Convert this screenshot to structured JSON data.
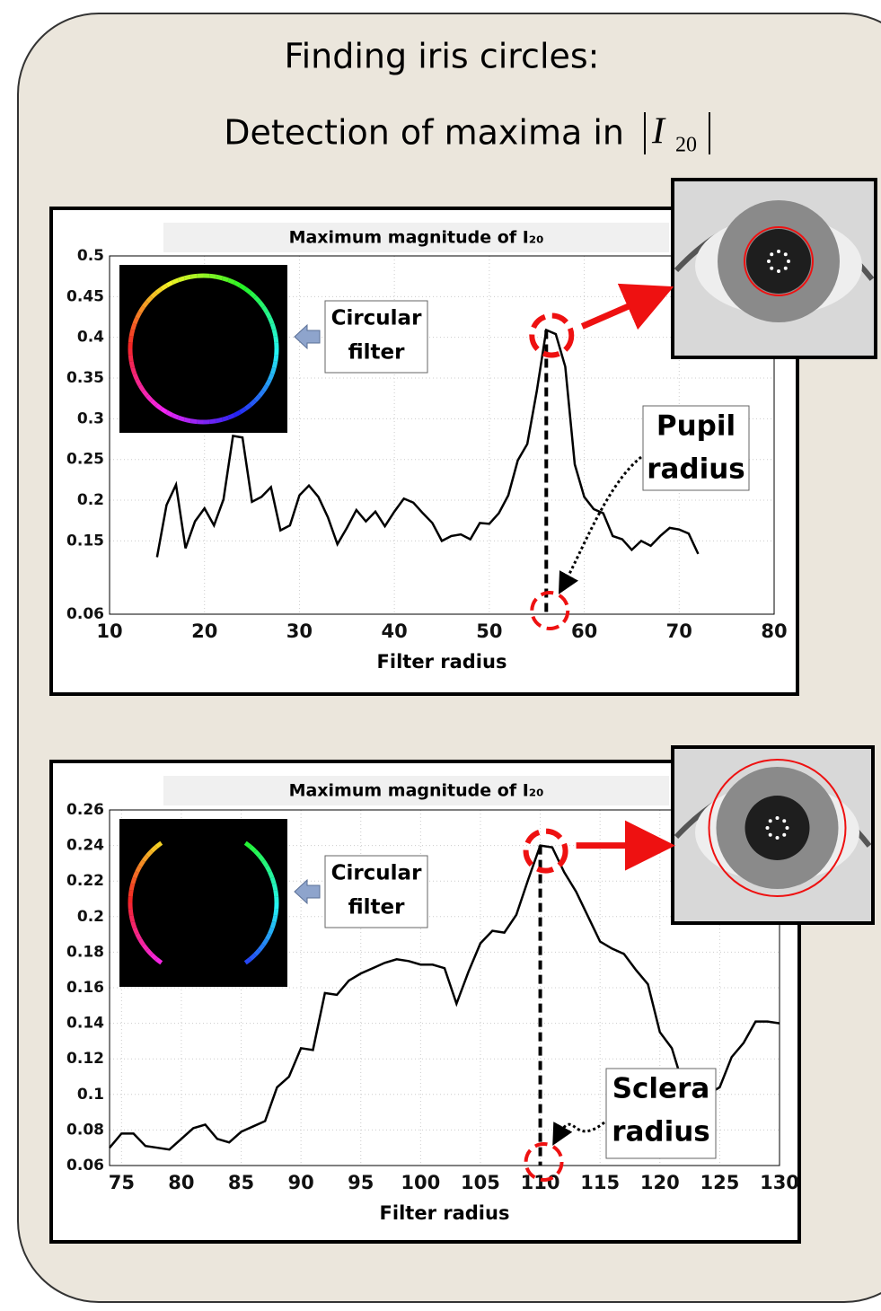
{
  "title": "Finding iris circles:",
  "subtitle": "Detection of maxima in",
  "formula": {
    "symbol": "I",
    "subscript": "20"
  },
  "chart_data": [
    {
      "type": "line",
      "title": "Maximum magnitude of I₂₀",
      "x_label": "Filter radius",
      "color": "#000000",
      "grid": true,
      "x": [
        15,
        16,
        17,
        18,
        19,
        20,
        21,
        22,
        23,
        24,
        25,
        26,
        27,
        28,
        29,
        30,
        31,
        32,
        33,
        34,
        35,
        36,
        37,
        38,
        39,
        40,
        41,
        42,
        43,
        44,
        45,
        46,
        47,
        48,
        49,
        50,
        51,
        52,
        53,
        54,
        55,
        56,
        57,
        58,
        59,
        60,
        61,
        62,
        63,
        64,
        65,
        66,
        67,
        68,
        69,
        70,
        71,
        72
      ],
      "values": [
        0.13,
        0.194,
        0.219,
        0.141,
        0.174,
        0.19,
        0.169,
        0.201,
        0.279,
        0.277,
        0.198,
        0.204,
        0.216,
        0.163,
        0.169,
        0.206,
        0.218,
        0.204,
        0.179,
        0.146,
        0.166,
        0.188,
        0.174,
        0.186,
        0.168,
        0.186,
        0.202,
        0.197,
        0.184,
        0.172,
        0.15,
        0.156,
        0.158,
        0.152,
        0.172,
        0.171,
        0.184,
        0.206,
        0.249,
        0.269,
        0.334,
        0.409,
        0.404,
        0.364,
        0.244,
        0.204,
        0.189,
        0.184,
        0.156,
        0.152,
        0.139,
        0.15,
        0.144,
        0.156,
        0.166,
        0.164,
        0.159,
        0.134
      ],
      "xlim": [
        10,
        80
      ],
      "xticks": [
        10,
        20,
        30,
        40,
        50,
        60,
        70,
        80
      ],
      "ylim": [
        0.06,
        0.5
      ],
      "yticks": [
        0.06,
        0.15,
        0.2,
        0.25,
        0.3,
        0.35,
        0.4,
        0.45,
        0.5
      ],
      "annotations": [
        {
          "lines": [
            "Circular",
            "filter"
          ]
        },
        {
          "lines": [
            "Pupil",
            "radius"
          ]
        }
      ]
    },
    {
      "type": "line",
      "title": "Maximum magnitude of I₂₀",
      "x_label": "Filter radius",
      "color": "#000000",
      "grid": true,
      "x": [
        74,
        75,
        76,
        77,
        78,
        79,
        80,
        81,
        82,
        83,
        84,
        85,
        86,
        87,
        88,
        89,
        90,
        91,
        92,
        93,
        94,
        95,
        96,
        97,
        98,
        99,
        100,
        101,
        102,
        103,
        104,
        105,
        106,
        107,
        108,
        109,
        110,
        111,
        112,
        113,
        114,
        115,
        116,
        117,
        118,
        119,
        120,
        121,
        122,
        123,
        124,
        125,
        126,
        127,
        128,
        129,
        130
      ],
      "values": [
        0.07,
        0.078,
        0.078,
        0.071,
        0.07,
        0.069,
        0.075,
        0.081,
        0.083,
        0.075,
        0.073,
        0.079,
        0.082,
        0.085,
        0.104,
        0.11,
        0.126,
        0.125,
        0.157,
        0.156,
        0.164,
        0.168,
        0.171,
        0.174,
        0.176,
        0.175,
        0.173,
        0.173,
        0.171,
        0.151,
        0.169,
        0.185,
        0.192,
        0.191,
        0.201,
        0.221,
        0.24,
        0.239,
        0.225,
        0.214,
        0.2,
        0.186,
        0.182,
        0.179,
        0.17,
        0.162,
        0.135,
        0.126,
        0.104,
        0.1,
        0.1,
        0.104,
        0.121,
        0.129,
        0.141,
        0.141,
        0.14
      ],
      "xlim": [
        74,
        130
      ],
      "xticks": [
        75,
        80,
        85,
        90,
        95,
        100,
        105,
        110,
        115,
        120,
        125,
        130
      ],
      "ylim": [
        0.06,
        0.26
      ],
      "yticks": [
        0.06,
        0.08,
        0.1,
        0.12,
        0.14,
        0.16,
        0.18,
        0.2,
        0.22,
        0.24,
        0.26
      ],
      "annotations": [
        {
          "lines": [
            "Circular",
            "filter"
          ]
        },
        {
          "lines": [
            "Sclera",
            "radius"
          ]
        }
      ]
    }
  ]
}
